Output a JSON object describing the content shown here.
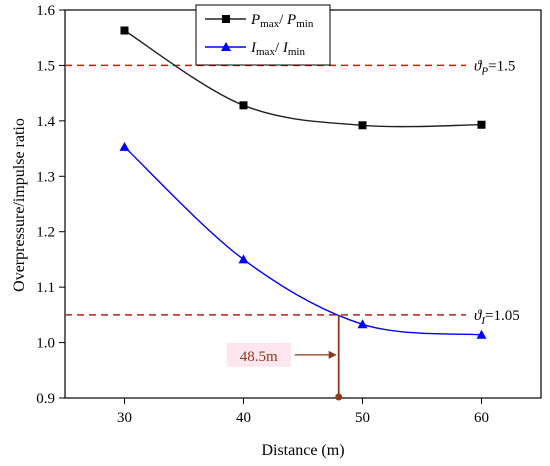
{
  "chart_data": {
    "type": "line",
    "xlabel": "Distance (m)",
    "ylabel": "Overpressure/impulse ratio",
    "xlim": [
      25,
      65
    ],
    "ylim": [
      0.9,
      1.6
    ],
    "x_ticks": [
      "30",
      "40",
      "50",
      "60"
    ],
    "y_ticks": [
      "0.9",
      "1.0",
      "1.1",
      "1.2",
      "1.3",
      "1.4",
      "1.5",
      "1.6"
    ],
    "x": [
      30,
      40,
      50,
      60
    ],
    "series": [
      {
        "name": "Pmax/Pmin",
        "values": [
          1.563,
          1.428,
          1.392,
          1.393
        ],
        "color": "#222222",
        "marker": "square"
      },
      {
        "name": "Imax/Imin",
        "values": [
          1.353,
          1.15,
          1.033,
          1.014
        ],
        "color": "#0000ff",
        "marker": "triangle"
      }
    ],
    "legend_placement": "top-center",
    "thresholds": [
      {
        "label": "ϑP=1.5",
        "symbol": "ϑ",
        "sub": "P",
        "value_text": "=1.5",
        "value": 1.5,
        "color": "#ff0000"
      },
      {
        "label": "ϑI=1.05",
        "symbol": "ϑ",
        "sub": "I",
        "value_text": "=1.05",
        "value": 1.05,
        "color": "#b22222"
      }
    ],
    "annotation": {
      "label": "48.5m",
      "x": 48.0,
      "y": 1.05,
      "color": "#8b3a1a"
    },
    "grid": false
  },
  "legend": {
    "p": {
      "sym": "P",
      "max": "max",
      "slash": "/ ",
      "min": "min"
    },
    "i": {
      "sym": "I",
      "max": "max",
      "slash": "/ ",
      "min": "min"
    }
  }
}
